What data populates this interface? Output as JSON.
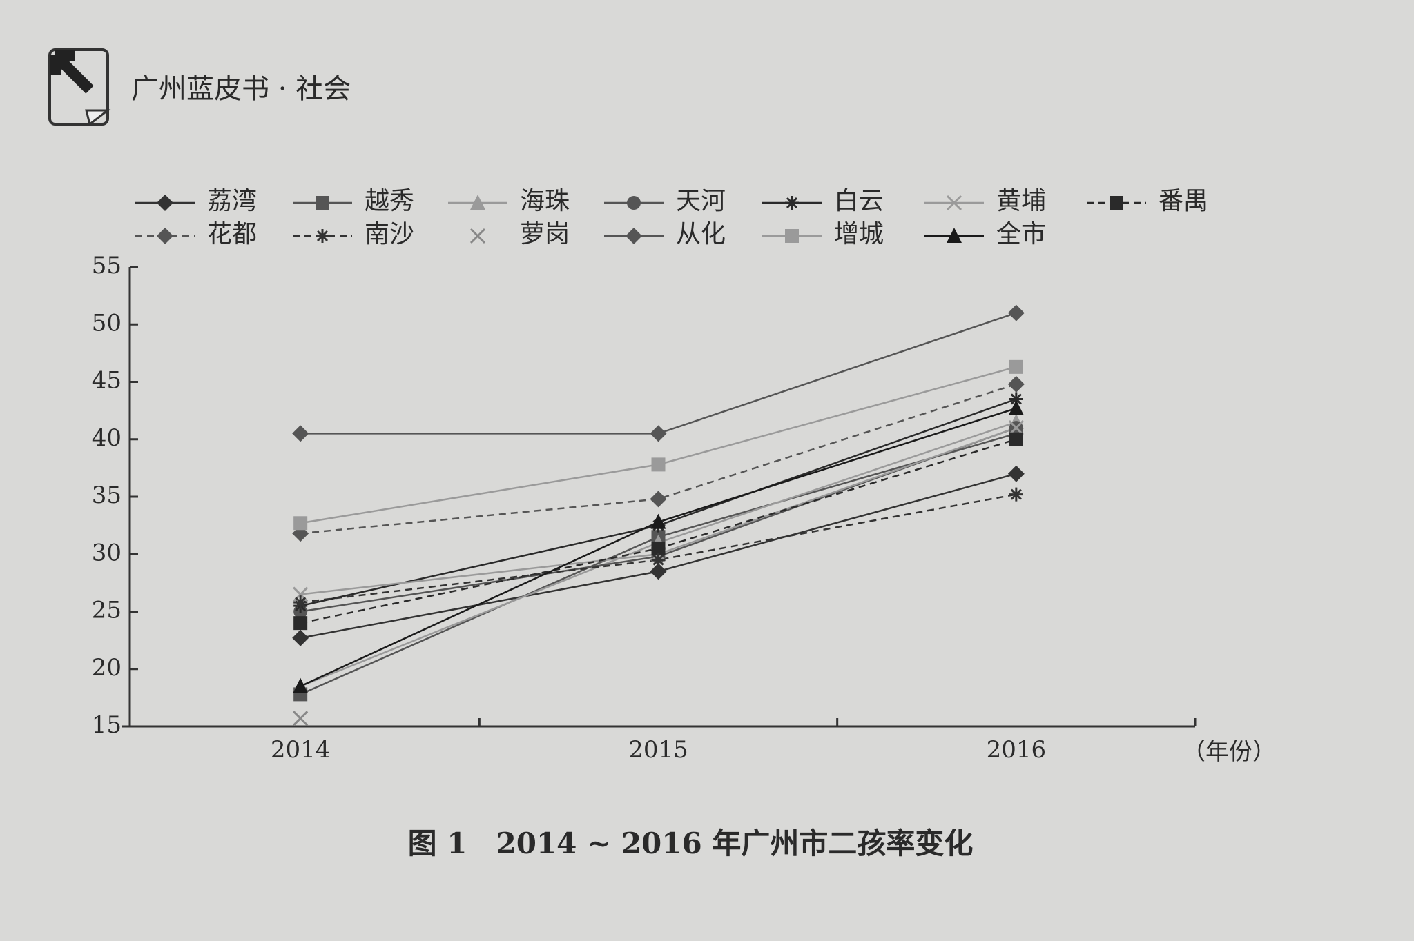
{
  "header": {
    "title": "广州蓝皮书 · 社会"
  },
  "chart_data": {
    "type": "line",
    "title": "图 1　2014 ~ 2016 年广州市二孩率变化",
    "x_label": "（年份）",
    "categories": [
      "2014",
      "2015",
      "2016"
    ],
    "ylim": [
      15,
      55
    ],
    "yticks": [
      15,
      20,
      25,
      30,
      35,
      40,
      45,
      50,
      55
    ],
    "series": [
      {
        "name": "荔湾",
        "color": "#333333",
        "dash": "solid",
        "marker": "diamond",
        "values": [
          22.7,
          28.5,
          37.0
        ]
      },
      {
        "name": "越秀",
        "color": "#555555",
        "dash": "solid",
        "marker": "square",
        "values": [
          17.8,
          31.5,
          40.5
        ]
      },
      {
        "name": "海珠",
        "color": "#9a9a9a",
        "dash": "solid",
        "marker": "triangle",
        "values": [
          18.5,
          31.0,
          41.5
        ]
      },
      {
        "name": "天河",
        "color": "#555555",
        "dash": "solid",
        "marker": "circle",
        "values": [
          25.0,
          29.8,
          41.0
        ]
      },
      {
        "name": "白云",
        "color": "#2a2a2a",
        "dash": "solid",
        "marker": "star",
        "values": [
          25.5,
          32.5,
          43.5
        ]
      },
      {
        "name": "黄埔",
        "color": "#9a9a9a",
        "dash": "solid",
        "marker": "x",
        "values": [
          26.5,
          30.0,
          41.0
        ]
      },
      {
        "name": "番禺",
        "color": "#2a2a2a",
        "dash": "dashed",
        "marker": "square",
        "values": [
          24.0,
          30.5,
          40.0
        ]
      },
      {
        "name": "花都",
        "color": "#555555",
        "dash": "dashed",
        "marker": "diamond",
        "values": [
          31.8,
          34.8,
          44.8
        ]
      },
      {
        "name": "南沙",
        "color": "#333333",
        "dash": "dashed",
        "marker": "star",
        "values": [
          25.8,
          29.5,
          35.2
        ]
      },
      {
        "name": "萝岗",
        "color": "#888888",
        "dash": "none",
        "marker": "x",
        "values": [
          15.7,
          null,
          null
        ]
      },
      {
        "name": "从化",
        "color": "#555555",
        "dash": "solid",
        "marker": "diamond",
        "values": [
          40.5,
          40.5,
          51.0
        ]
      },
      {
        "name": "增城",
        "color": "#9a9a9a",
        "dash": "solid",
        "marker": "square",
        "values": [
          32.7,
          37.8,
          46.3
        ]
      },
      {
        "name": "全市",
        "color": "#1a1a1a",
        "dash": "solid",
        "marker": "triangle",
        "values": [
          18.5,
          32.8,
          42.7
        ]
      }
    ]
  }
}
